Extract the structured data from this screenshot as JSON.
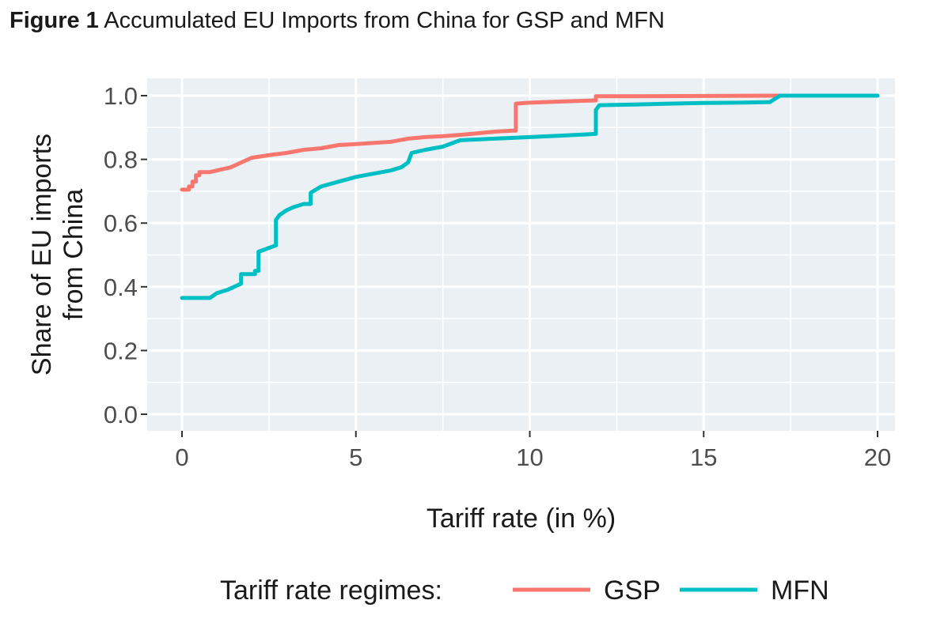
{
  "figure": {
    "label": "Figure 1",
    "caption": "Accumulated EU Imports from China for GSP and MFN"
  },
  "chart_data": {
    "type": "line",
    "title": "Accumulated EU Imports from China for GSP and MFN",
    "xlabel": "Tariff rate (in %)",
    "ylabel_lines": [
      "Share of EU imports",
      "from China"
    ],
    "xlim": [
      0,
      20
    ],
    "ylim": [
      0,
      1.0
    ],
    "xticks": [
      0,
      5,
      10,
      15,
      20
    ],
    "xtick_labels": [
      "0",
      "5",
      "10",
      "15",
      "20"
    ],
    "yticks": [
      0.0,
      0.2,
      0.4,
      0.6,
      0.8,
      1.0
    ],
    "ytick_labels": [
      "0.0",
      "0.2",
      "0.4",
      "0.6",
      "0.8",
      "1.0"
    ],
    "grid": true,
    "legend": {
      "title": "Tariff rate regimes:",
      "position": "bottom"
    },
    "series": [
      {
        "name": "GSP",
        "color": "#f8766d",
        "x": [
          0,
          0.2,
          0.2,
          0.3,
          0.3,
          0.4,
          0.4,
          0.5,
          0.5,
          0.8,
          1.0,
          1.2,
          1.4,
          1.6,
          1.8,
          2.0,
          2.3,
          2.6,
          3.0,
          3.5,
          4.0,
          4.5,
          5.0,
          6.0,
          6.5,
          7.0,
          7.5,
          8.0,
          8.5,
          9.0,
          9.5,
          9.6,
          9.6,
          10.0,
          11.0,
          11.9,
          11.9,
          13.0,
          15.0,
          17.0,
          18.0,
          20.0
        ],
        "y": [
          0.705,
          0.705,
          0.715,
          0.715,
          0.73,
          0.73,
          0.75,
          0.75,
          0.76,
          0.76,
          0.765,
          0.77,
          0.775,
          0.785,
          0.795,
          0.805,
          0.81,
          0.815,
          0.82,
          0.83,
          0.835,
          0.845,
          0.848,
          0.855,
          0.865,
          0.87,
          0.873,
          0.877,
          0.882,
          0.887,
          0.89,
          0.89,
          0.975,
          0.978,
          0.982,
          0.985,
          0.998,
          0.998,
          0.999,
          1.0,
          1.0,
          1.0
        ]
      },
      {
        "name": "MFN",
        "color": "#00bfc4",
        "x": [
          0,
          0.8,
          1.0,
          1.3,
          1.6,
          1.7,
          1.7,
          2.1,
          2.1,
          2.2,
          2.2,
          2.7,
          2.7,
          2.8,
          3.0,
          3.2,
          3.5,
          3.7,
          3.7,
          4.0,
          4.5,
          5.0,
          5.5,
          6.0,
          6.3,
          6.5,
          6.6,
          7.0,
          7.5,
          8.0,
          9.0,
          10.0,
          11.0,
          11.9,
          11.9,
          12.0,
          13.0,
          14.0,
          15.0,
          16.0,
          16.9,
          17.2,
          18.0,
          20.0
        ],
        "y": [
          0.365,
          0.365,
          0.38,
          0.39,
          0.405,
          0.41,
          0.44,
          0.44,
          0.45,
          0.45,
          0.51,
          0.53,
          0.61,
          0.625,
          0.64,
          0.65,
          0.66,
          0.66,
          0.695,
          0.715,
          0.73,
          0.745,
          0.755,
          0.765,
          0.775,
          0.79,
          0.82,
          0.83,
          0.84,
          0.86,
          0.865,
          0.87,
          0.875,
          0.88,
          0.955,
          0.97,
          0.972,
          0.975,
          0.977,
          0.978,
          0.98,
          1.0,
          1.0,
          1.0
        ]
      }
    ]
  }
}
